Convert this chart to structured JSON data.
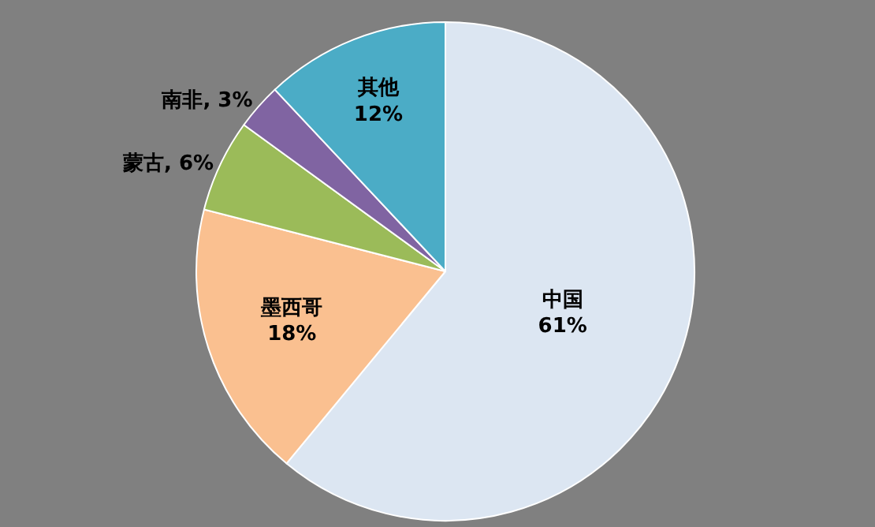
{
  "chart_data": {
    "type": "pie",
    "categories": [
      "中国",
      "墨西哥",
      "蒙古",
      "南非",
      "其他"
    ],
    "values": [
      61,
      18,
      6,
      3,
      12
    ],
    "value_labels": [
      "61%",
      "18%",
      "6%",
      "3%",
      "12%"
    ],
    "colors": [
      "#dce6f2",
      "#fac090",
      "#9bbb59",
      "#8064a2",
      "#4bacc6"
    ],
    "legend": false
  }
}
